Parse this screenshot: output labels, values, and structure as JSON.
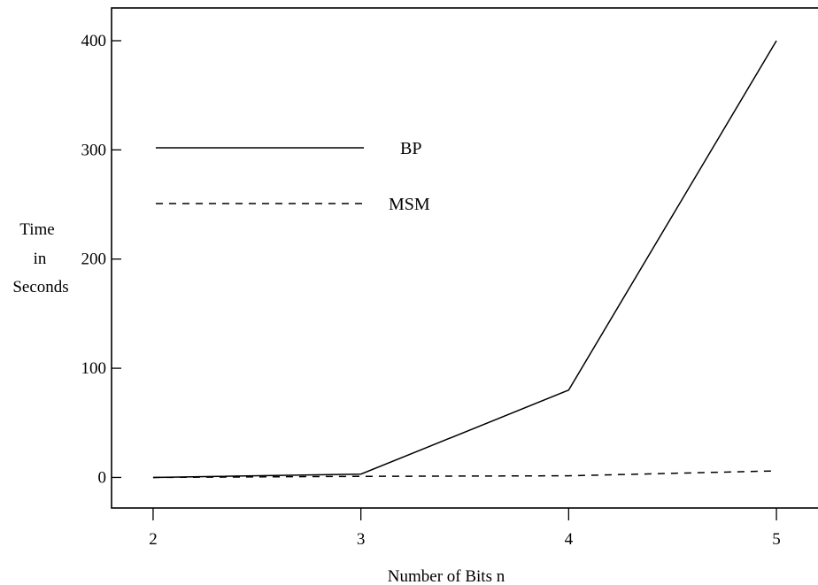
{
  "chart_data": {
    "type": "line",
    "xlabel": "Number of Bits n",
    "ylabel_lines": [
      "Time",
      "in",
      "Seconds"
    ],
    "x": [
      2,
      3,
      4,
      5
    ],
    "xticks": [
      2,
      3,
      4,
      5
    ],
    "yticks": [
      0,
      100,
      200,
      300,
      400
    ],
    "xlim": [
      1.8,
      5.2
    ],
    "ylim": [
      -28,
      430
    ],
    "series": [
      {
        "name": "BP",
        "style": "solid",
        "values": [
          0,
          3,
          80,
          400
        ]
      },
      {
        "name": "MSM",
        "style": "dashed",
        "values": [
          0,
          1,
          1.5,
          6
        ]
      }
    ],
    "legend": [
      "BP",
      "MSM"
    ],
    "grid": false,
    "line_color": "#000000"
  }
}
